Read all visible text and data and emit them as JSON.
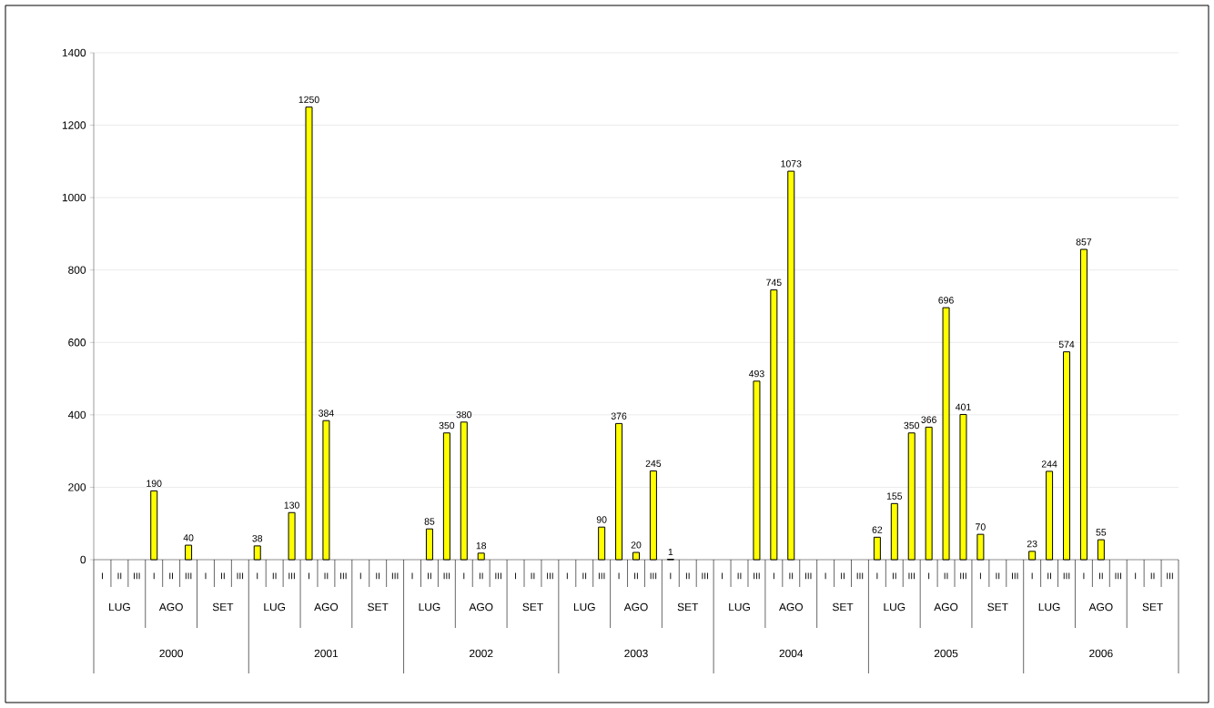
{
  "chart_data": {
    "type": "bar",
    "color": "#ffff00",
    "categories": [
      "I",
      "II",
      "III",
      "I",
      "II",
      "III",
      "I",
      "II",
      "III",
      "I",
      "II",
      "III",
      "I",
      "II",
      "III",
      "I",
      "II",
      "III",
      "I",
      "II",
      "III",
      "I",
      "II",
      "III",
      "I",
      "II",
      "III",
      "I",
      "II",
      "III",
      "I",
      "II",
      "III",
      "I",
      "II",
      "III",
      "I",
      "II",
      "III",
      "I",
      "II",
      "III",
      "I",
      "II",
      "III",
      "I",
      "II",
      "III",
      "I",
      "II",
      "III",
      "I",
      "II",
      "III",
      "I",
      "II",
      "III",
      "I",
      "II",
      "III",
      "I",
      "II",
      "III"
    ],
    "values": [
      null,
      null,
      null,
      190,
      null,
      40,
      null,
      null,
      null,
      38,
      null,
      130,
      1250,
      384,
      null,
      null,
      null,
      null,
      null,
      85,
      350,
      380,
      18,
      null,
      null,
      null,
      null,
      null,
      null,
      90,
      376,
      20,
      245,
      1,
      null,
      null,
      null,
      null,
      493,
      745,
      1073,
      null,
      null,
      null,
      null,
      62,
      155,
      350,
      366,
      696,
      401,
      70,
      null,
      null,
      23,
      244,
      574,
      857,
      55,
      null,
      null,
      null,
      null
    ],
    "annotations": [
      "LUG",
      "AGO",
      "SET",
      "LUG",
      "AGO",
      "SET",
      "LUG",
      "AGO",
      "SET",
      "LUG",
      "AGO",
      "SET",
      "LUG",
      "AGO",
      "SET",
      "LUG",
      "AGO",
      "SET",
      "LUG",
      "AGO",
      "SET",
      "2000",
      "2001",
      "2002",
      "2003",
      "2004",
      "2005",
      "2006"
    ],
    "ylim": [
      0,
      1400
    ],
    "yticks": [
      0,
      200,
      400,
      600,
      800,
      1000,
      1200,
      1400
    ],
    "grid": "y",
    "data_labels": true
  }
}
